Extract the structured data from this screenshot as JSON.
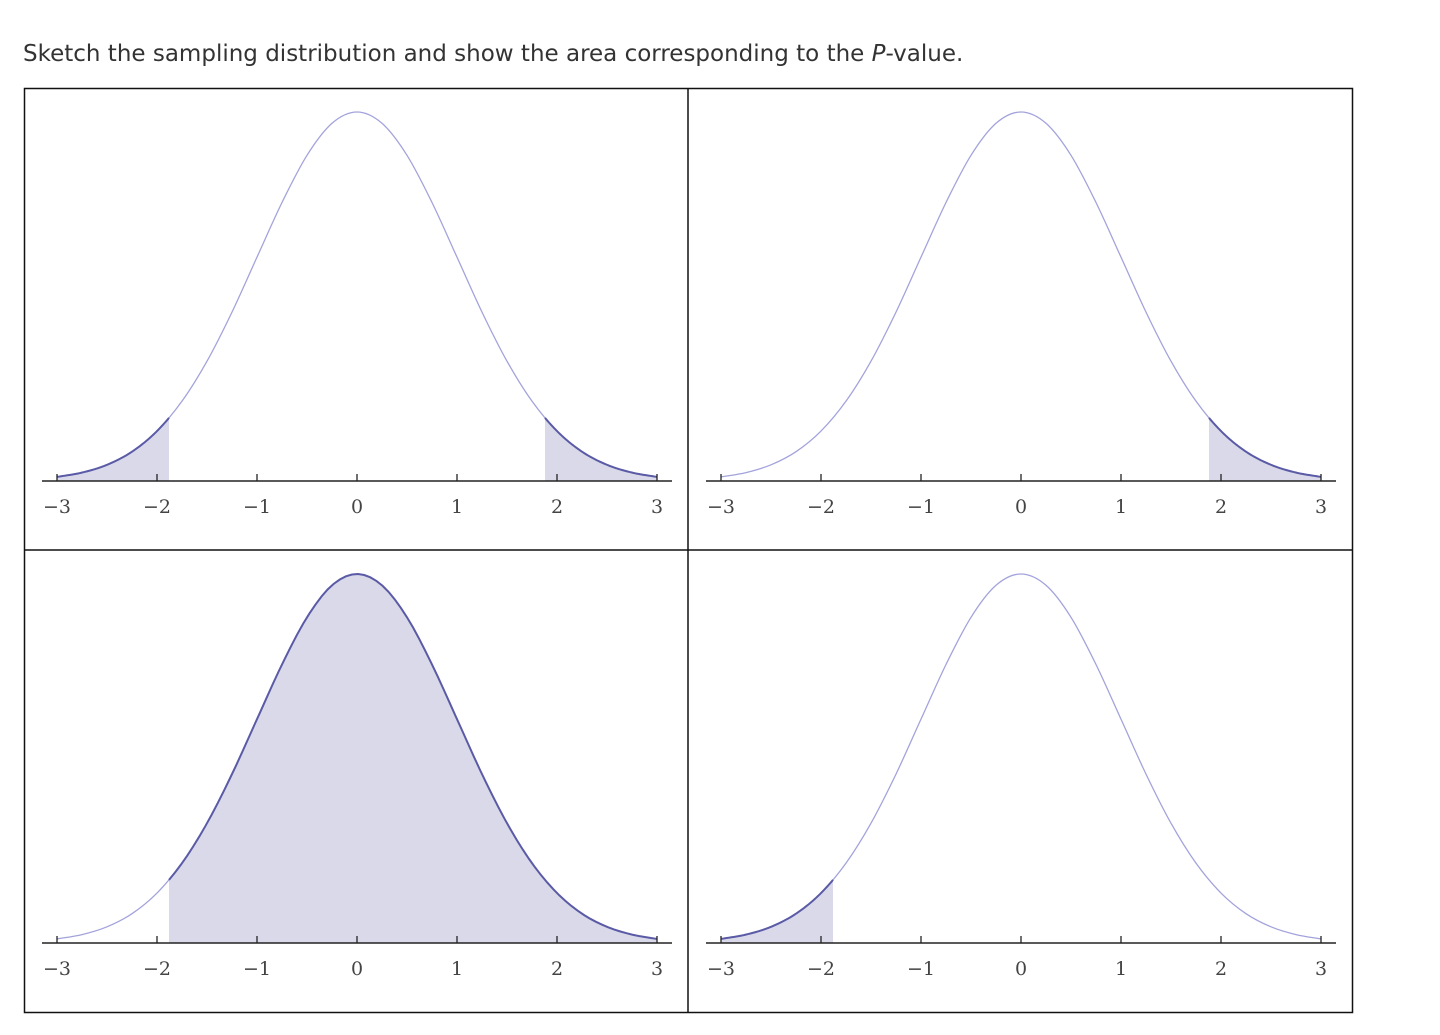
{
  "prompt": {
    "before": "Sketch the sampling distribution and show the area corresponding to the ",
    "italic": "P",
    "after": "-value."
  },
  "chart_data": [
    {
      "type": "area",
      "x": [
        -3,
        -2.75,
        -2.5,
        -2.25,
        -2,
        -1.75,
        -1.5,
        -1.25,
        -1,
        -0.75,
        -0.5,
        -0.25,
        0,
        0.25,
        0.5,
        0.75,
        1,
        1.25,
        1.5,
        1.75,
        2,
        2.25,
        2.5,
        2.75,
        3
      ],
      "values": [
        0.0044,
        0.0091,
        0.0175,
        0.0317,
        0.054,
        0.0863,
        0.1295,
        0.1826,
        0.242,
        0.3011,
        0.3521,
        0.3867,
        0.3989,
        0.3867,
        0.3521,
        0.3011,
        0.242,
        0.1826,
        0.1295,
        0.0863,
        0.054,
        0.0317,
        0.0175,
        0.0091,
        0.0044
      ],
      "shade": [
        [
          -3,
          -1.88
        ],
        [
          1.88,
          3
        ]
      ],
      "xlim": [
        -3.15,
        3.15
      ],
      "ylim": [
        0,
        0.4
      ],
      "xticks": [
        {
          "value": -3,
          "label": "−3"
        },
        {
          "value": -2,
          "label": "−2"
        },
        {
          "value": -1,
          "label": "−1"
        },
        0,
        1,
        2,
        3
      ],
      "color": "#a3a3dc",
      "shade_color": "#d9d9ea",
      "edge_color": "#5a5aa6"
    },
    {
      "type": "area",
      "x": [
        -3,
        -2.75,
        -2.5,
        -2.25,
        -2,
        -1.75,
        -1.5,
        -1.25,
        -1,
        -0.75,
        -0.5,
        -0.25,
        0,
        0.25,
        0.5,
        0.75,
        1,
        1.25,
        1.5,
        1.75,
        2,
        2.25,
        2.5,
        2.75,
        3
      ],
      "values": [
        0.0044,
        0.0091,
        0.0175,
        0.0317,
        0.054,
        0.0863,
        0.1295,
        0.1826,
        0.242,
        0.3011,
        0.3521,
        0.3867,
        0.3989,
        0.3867,
        0.3521,
        0.3011,
        0.242,
        0.1826,
        0.1295,
        0.0863,
        0.054,
        0.0317,
        0.0175,
        0.0091,
        0.0044
      ],
      "shade": [
        [
          1.88,
          3
        ]
      ],
      "xlim": [
        -3.15,
        3.15
      ],
      "ylim": [
        0,
        0.4
      ],
      "xticks": [
        {
          "value": -3,
          "label": "−3"
        },
        {
          "value": -2,
          "label": "−2"
        },
        {
          "value": -1,
          "label": "−1"
        },
        0,
        1,
        2,
        3
      ],
      "color": "#a3a3dc",
      "shade_color": "#d9d9ea",
      "edge_color": "#5a5aa6"
    },
    {
      "type": "area",
      "x": [
        -3,
        -2.75,
        -2.5,
        -2.25,
        -2,
        -1.75,
        -1.5,
        -1.25,
        -1,
        -0.75,
        -0.5,
        -0.25,
        0,
        0.25,
        0.5,
        0.75,
        1,
        1.25,
        1.5,
        1.75,
        2,
        2.25,
        2.5,
        2.75,
        3
      ],
      "values": [
        0.0044,
        0.0091,
        0.0175,
        0.0317,
        0.054,
        0.0863,
        0.1295,
        0.1826,
        0.242,
        0.3011,
        0.3521,
        0.3867,
        0.3989,
        0.3867,
        0.3521,
        0.3011,
        0.242,
        0.1826,
        0.1295,
        0.0863,
        0.054,
        0.0317,
        0.0175,
        0.0091,
        0.0044
      ],
      "shade": [
        [
          -1.88,
          3
        ]
      ],
      "xlim": [
        -3.15,
        3.15
      ],
      "ylim": [
        0,
        0.4
      ],
      "xticks": [
        {
          "value": -3,
          "label": "−3"
        },
        {
          "value": -2,
          "label": "−2"
        },
        {
          "value": -1,
          "label": "−1"
        },
        0,
        1,
        2,
        3
      ],
      "color": "#a3a3dc",
      "shade_color": "#d9d9ea",
      "edge_color": "#5a5aa6"
    },
    {
      "type": "area",
      "x": [
        -3,
        -2.75,
        -2.5,
        -2.25,
        -2,
        -1.75,
        -1.5,
        -1.25,
        -1,
        -0.75,
        -0.5,
        -0.25,
        0,
        0.25,
        0.5,
        0.75,
        1,
        1.25,
        1.5,
        1.75,
        2,
        2.25,
        2.5,
        2.75,
        3
      ],
      "values": [
        0.0044,
        0.0091,
        0.0175,
        0.0317,
        0.054,
        0.0863,
        0.1295,
        0.1826,
        0.242,
        0.3011,
        0.3521,
        0.3867,
        0.3989,
        0.3867,
        0.3521,
        0.3011,
        0.242,
        0.1826,
        0.1295,
        0.0863,
        0.054,
        0.0317,
        0.0175,
        0.0091,
        0.0044
      ],
      "shade": [
        [
          -3,
          -1.88
        ]
      ],
      "xlim": [
        -3.15,
        3.15
      ],
      "ylim": [
        0,
        0.4
      ],
      "xticks": [
        {
          "value": -3,
          "label": "−3"
        },
        {
          "value": -2,
          "label": "−2"
        },
        {
          "value": -1,
          "label": "−1"
        },
        0,
        1,
        2,
        3
      ],
      "color": "#a3a3dc",
      "shade_color": "#d9d9ea",
      "edge_color": "#5a5aa6"
    }
  ]
}
